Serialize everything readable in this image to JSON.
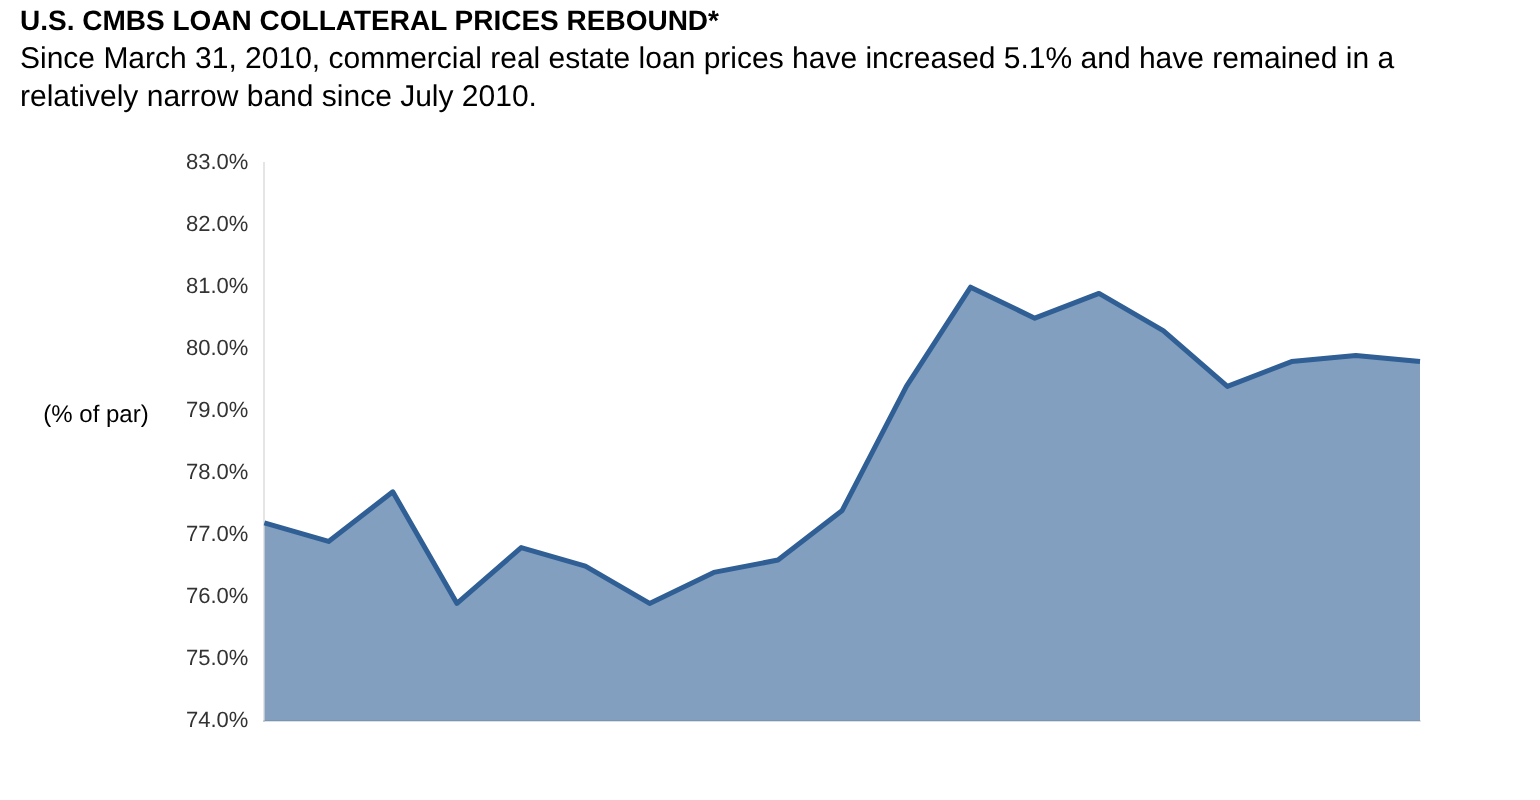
{
  "chart_data": {
    "type": "area",
    "title": "U.S. CMBS LOAN COLLATERAL PRICES REBOUND*",
    "subtitle": "Since March 31, 2010, commercial real estate loan prices have increased 5.1% and have remained in a relatively narrow band since July 2010.",
    "ylabel": "(% of par)",
    "categories": [
      null,
      null,
      null,
      null,
      null,
      null,
      null,
      null,
      null,
      null,
      null,
      null,
      null,
      null,
      null,
      null,
      null,
      null,
      null
    ],
    "series": [
      {
        "color": "#2f5f94",
        "values": [
          77.2,
          76.9,
          77.7,
          75.9,
          76.8,
          76.5,
          75.9,
          76.4,
          76.6,
          77.4,
          79.4,
          81.0,
          80.5,
          80.9,
          80.3,
          79.4,
          79.8,
          79.9,
          79.8
        ]
      }
    ],
    "ylim": [
      74,
      83
    ],
    "yticks": [
      {
        "value": 74,
        "label": "74.0%"
      },
      {
        "value": 75,
        "label": "75.0%"
      },
      {
        "value": 76,
        "label": "76.0%"
      },
      {
        "value": 77,
        "label": "77.0%"
      },
      {
        "value": 78,
        "label": "78.0%"
      },
      {
        "value": 79,
        "label": "79.0%"
      },
      {
        "value": 80,
        "label": "80.0%"
      },
      {
        "value": 81,
        "label": "81.0%"
      },
      {
        "value": 82,
        "label": "82.0%"
      },
      {
        "value": 83,
        "label": "83.0%"
      }
    ],
    "grid": false,
    "legend": false
  }
}
